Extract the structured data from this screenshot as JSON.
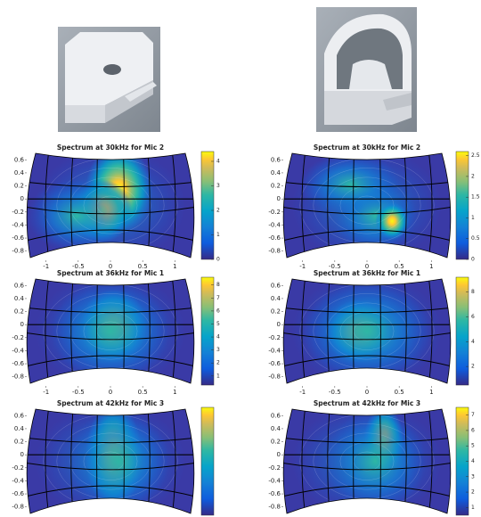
{
  "chart_data": [
    {
      "type": "heatmap",
      "title": "Spectrum at 30kHz for Mic 2",
      "xlim": [
        -1.3,
        1.3
      ],
      "xticks": [
        -1,
        -0.5,
        0,
        0.5,
        1
      ],
      "ylim": [
        -0.9,
        0.7
      ],
      "yticks": [
        0.6,
        0.4,
        0.2,
        0,
        -0.2,
        -0.4,
        -0.6,
        -0.8
      ],
      "clim": [
        0,
        4.4
      ],
      "cticks": [
        0,
        1,
        2,
        3,
        4
      ]
    },
    {
      "type": "heatmap",
      "title": "Spectrum at 30kHz for Mic 2",
      "xlim": [
        -1.3,
        1.3
      ],
      "xticks": [
        -1,
        -0.5,
        0,
        0.5,
        1
      ],
      "ylim": [
        -0.9,
        0.7
      ],
      "yticks": [
        0.6,
        0.4,
        0.2,
        0,
        -0.2,
        -0.4,
        -0.6,
        -0.8
      ],
      "clim": [
        0,
        2.6
      ],
      "cticks": [
        0,
        0.5,
        1,
        1.5,
        2,
        2.5
      ]
    },
    {
      "type": "heatmap",
      "title": "Spectrum at 36kHz for Mic 1",
      "xlim": [
        -1.3,
        1.3
      ],
      "xticks": [
        -1,
        -0.5,
        0,
        0.5,
        1
      ],
      "ylim": [
        -0.9,
        0.7
      ],
      "yticks": [
        0.6,
        0.4,
        0.2,
        0,
        -0.2,
        -0.4,
        -0.6,
        -0.8
      ],
      "clim": [
        0.3,
        8.6
      ],
      "cticks": [
        1,
        2,
        3,
        4,
        5,
        6,
        7,
        8
      ]
    },
    {
      "type": "heatmap",
      "title": "Spectrum at 36kHz for Mic 1",
      "xlim": [
        -1.3,
        1.3
      ],
      "xticks": [
        -1,
        -0.5,
        0,
        0.5,
        1
      ],
      "ylim": [
        -0.9,
        0.7
      ],
      "yticks": [
        0.6,
        0.4,
        0.2,
        0,
        -0.2,
        -0.4,
        -0.6,
        -0.8
      ],
      "clim": [
        0.5,
        9.2
      ],
      "cticks": [
        2,
        4,
        6,
        8
      ]
    },
    {
      "type": "heatmap",
      "title": "Spectrum at 42kHz for Mic 3",
      "xlim": [
        -1.3,
        1.3
      ],
      "ylim": [
        -0.9,
        0.7
      ],
      "yticks": [
        0.6,
        0.4,
        0.2,
        0,
        -0.2,
        -0.4,
        -0.6,
        -0.8
      ]
    },
    {
      "type": "heatmap",
      "title": "Spectrum at 42kHz for Mic 3",
      "xlim": [
        -1.3,
        1.3
      ],
      "ylim": [
        -0.9,
        0.7
      ],
      "yticks": [
        0.6,
        0.4,
        0.2,
        0,
        -0.2,
        -0.4,
        -0.6,
        -0.8
      ],
      "clim": [
        0.5,
        7.5
      ],
      "cticks": [
        1,
        2,
        3,
        4,
        5,
        6,
        7
      ]
    }
  ]
}
